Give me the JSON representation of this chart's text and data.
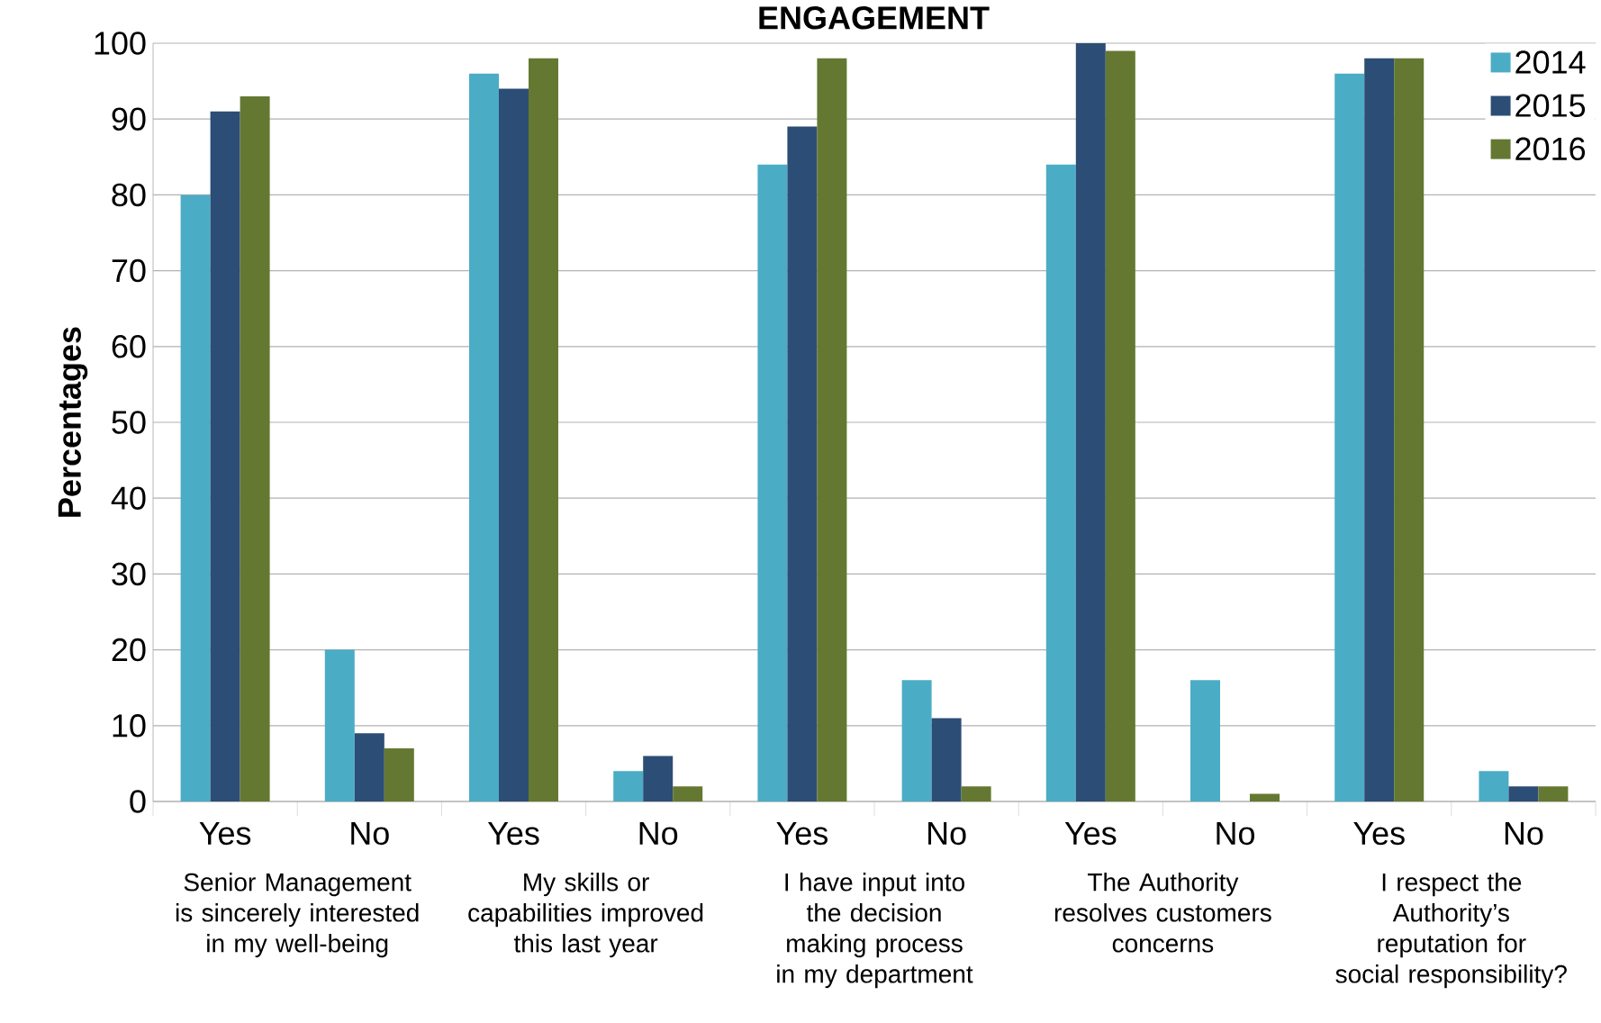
{
  "chart_data": {
    "type": "bar",
    "title": "ENGAGEMENT",
    "ylabel": "Percentages",
    "categories": [
      "Yes",
      "No",
      "Yes",
      "No",
      "Yes",
      "No",
      "Yes",
      "No",
      "Yes",
      "No"
    ],
    "series": [
      {
        "name": "2014",
        "color": "#4bacc6",
        "values": [
          80,
          20,
          96,
          4,
          84,
          16,
          84,
          16,
          96,
          4
        ]
      },
      {
        "name": "2015",
        "color": "#2c4d75",
        "values": [
          91,
          9,
          94,
          6,
          89,
          11,
          100,
          0,
          98,
          2
        ]
      },
      {
        "name": "2016",
        "color": "#647832",
        "values": [
          93,
          7,
          98,
          2,
          98,
          2,
          99,
          1,
          98,
          2
        ]
      }
    ],
    "annotations": [
      "Senior Management is sincerely interested in my well-being",
      "My skills or capabilities improved this last year",
      "I have input into the decision making process in my department",
      "The Authority resolves customers concerns",
      "I respect the Authority’s reputation for social responsibility?"
    ],
    "ylim": [
      0,
      100
    ],
    "yticks": [
      0,
      10,
      20,
      30,
      40,
      50,
      60,
      70,
      80,
      90,
      100
    ],
    "grid": "y",
    "legend": "top right"
  }
}
